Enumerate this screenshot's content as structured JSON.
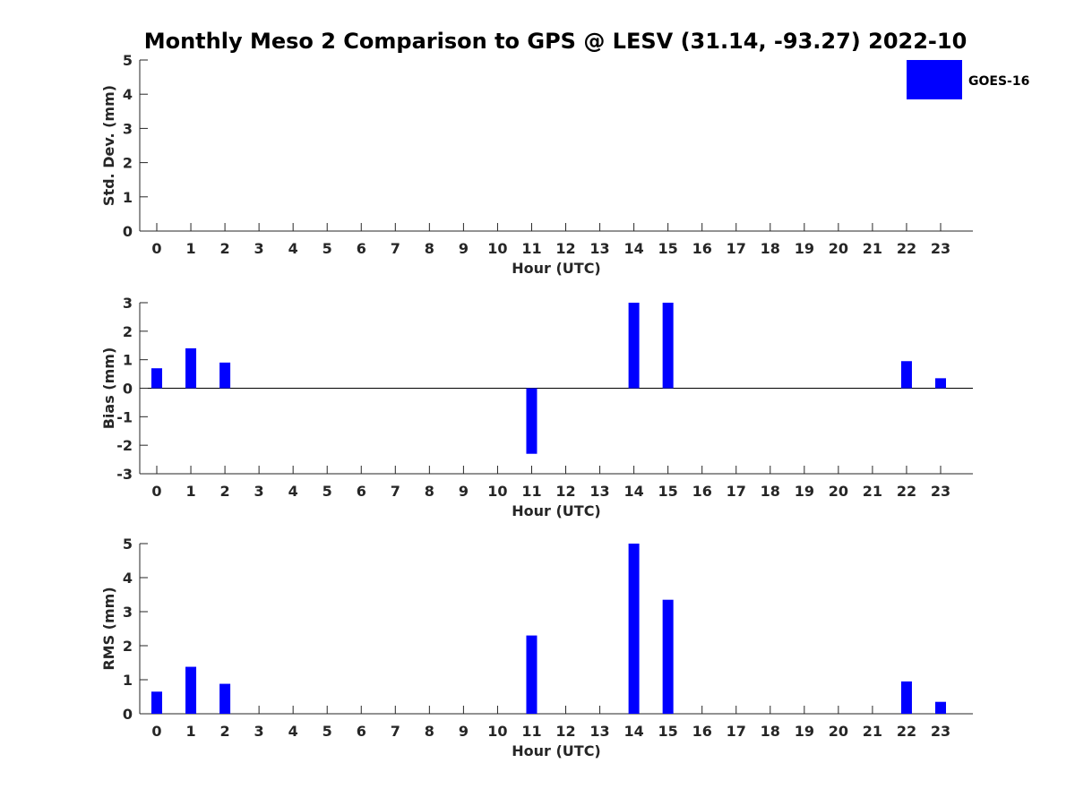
{
  "chart_data": {
    "type": "bar",
    "title": "Monthly Meso 2 Comparison to GPS @ LESV (31.14, -93.27) 2022-10",
    "legend": {
      "entries": [
        "GOES-16"
      ],
      "placement": "top-right"
    },
    "bar_color": "#0000ff",
    "categories": [
      "0",
      "1",
      "2",
      "3",
      "4",
      "5",
      "6",
      "7",
      "8",
      "9",
      "10",
      "11",
      "12",
      "13",
      "14",
      "15",
      "16",
      "17",
      "18",
      "19",
      "20",
      "21",
      "22",
      "23"
    ],
    "panels": [
      {
        "ylabel": "Std. Dev. (mm)",
        "xlabel": "Hour (UTC)",
        "ylim": [
          0,
          5
        ],
        "yticks": [
          "0",
          "1",
          "2",
          "3",
          "4",
          "5"
        ],
        "series": [
          {
            "name": "GOES-16",
            "values": [
              0,
              0,
              0,
              0,
              0,
              0,
              0,
              0,
              0,
              0,
              0,
              0,
              0,
              0,
              0,
              0,
              0,
              0,
              0,
              0,
              0,
              0,
              0,
              0
            ]
          }
        ]
      },
      {
        "ylabel": "Bias (mm)",
        "xlabel": "Hour (UTC)",
        "ylim": [
          -3,
          3
        ],
        "yticks": [
          "-3",
          "-2",
          "-1",
          "0",
          "1",
          "2",
          "3"
        ],
        "series": [
          {
            "name": "GOES-16",
            "values": [
              0.7,
              1.4,
              0.9,
              0,
              0,
              0,
              0,
              0,
              0,
              0,
              0,
              -2.3,
              0,
              0,
              3.0,
              3.0,
              0,
              0,
              0,
              0,
              0,
              0,
              0.95,
              0.35
            ]
          }
        ]
      },
      {
        "ylabel": "RMS (mm)",
        "xlabel": "Hour (UTC)",
        "ylim": [
          0,
          5
        ],
        "yticks": [
          "0",
          "1",
          "2",
          "3",
          "4",
          "5"
        ],
        "series": [
          {
            "name": "GOES-16",
            "values": [
              0.65,
              1.38,
              0.88,
              0,
              0,
              0,
              0,
              0,
              0,
              0,
              0,
              2.3,
              0,
              0,
              5.0,
              3.35,
              0,
              0,
              0,
              0,
              0,
              0,
              0.95,
              0.35
            ]
          }
        ]
      }
    ]
  }
}
